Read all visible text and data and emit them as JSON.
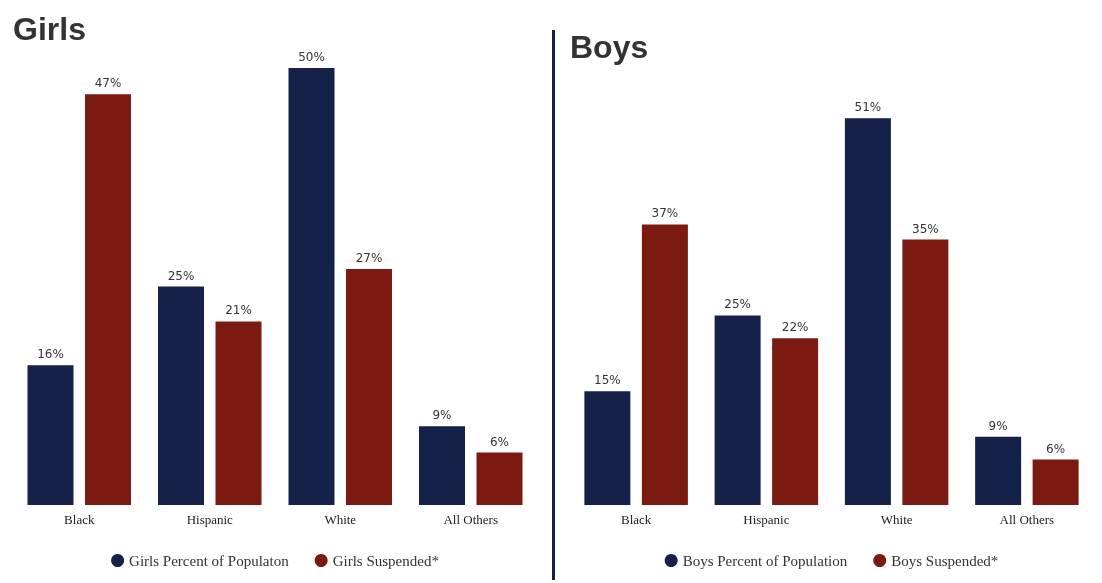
{
  "chart_data": [
    {
      "type": "bar",
      "title": "Girls",
      "categories": [
        "Black",
        "Hispanic",
        "White",
        "All Others"
      ],
      "series": [
        {
          "name": "Girls Percent of Populaton",
          "color": "#14224a",
          "values": [
            16,
            25,
            50,
            9
          ],
          "value_labels": [
            "16%",
            "25%",
            "50%",
            "9%"
          ]
        },
        {
          "name": "Girls Suspended*",
          "color": "#7a1a10",
          "values": [
            47,
            21,
            27,
            6
          ],
          "value_labels": [
            "47%",
            "21%",
            "27%",
            "6%"
          ]
        }
      ],
      "legend": "bottom"
    },
    {
      "type": "bar",
      "title": "Boys",
      "categories": [
        "Black",
        "Hispanic",
        "White",
        "All Others"
      ],
      "series": [
        {
          "name": "Boys Percent of Population",
          "color": "#14224a",
          "values": [
            15,
            25,
            51,
            9
          ],
          "value_labels": [
            "15%",
            "25%",
            "51%",
            "9%"
          ]
        },
        {
          "name": "Boys Suspended*",
          "color": "#7a1a10",
          "values": [
            37,
            22,
            35,
            6
          ],
          "value_labels": [
            "37%",
            "22%",
            "35%",
            "6%"
          ]
        }
      ],
      "legend": "bottom"
    }
  ]
}
